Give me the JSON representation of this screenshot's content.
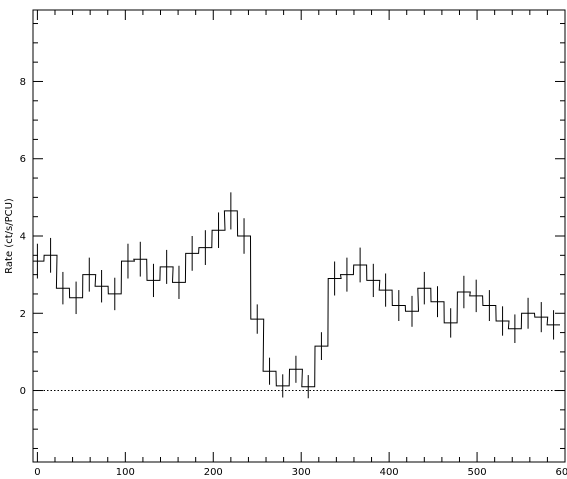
{
  "chart_data": {
    "type": "line",
    "step": true,
    "title": "",
    "xlabel": "",
    "ylabel": "Rate (ct/s/PCU)",
    "xlim": [
      -5,
      600
    ],
    "ylim": [
      -1.85,
      9.85
    ],
    "x_ticks": [
      0,
      100,
      200,
      300,
      400,
      500,
      600
    ],
    "y_ticks": [
      0,
      2,
      4,
      6,
      8
    ],
    "zero_line": true,
    "bin_width": 14.7,
    "series": [
      {
        "x": [
          0,
          15,
          29,
          44,
          59,
          73,
          88,
          103,
          117,
          132,
          147,
          161,
          176,
          191,
          206,
          220,
          235,
          250,
          264,
          279,
          294,
          308,
          323,
          338,
          352,
          367,
          382,
          396,
          411,
          426,
          440,
          455,
          470,
          485,
          499,
          514,
          529,
          543,
          558,
          573,
          587
        ],
        "y": [
          3.35,
          3.5,
          2.65,
          2.4,
          3.0,
          2.7,
          2.5,
          3.35,
          3.4,
          2.85,
          3.2,
          2.8,
          3.55,
          3.7,
          4.15,
          4.65,
          4.0,
          1.85,
          0.5,
          0.12,
          0.55,
          0.1,
          1.15,
          2.9,
          3.0,
          3.25,
          2.85,
          2.6,
          2.2,
          2.05,
          2.65,
          2.3,
          1.75,
          2.55,
          2.45,
          2.2,
          1.8,
          1.6,
          2.0,
          1.9,
          1.7
        ],
        "err": [
          0.45,
          0.45,
          0.42,
          0.42,
          0.44,
          0.42,
          0.42,
          0.45,
          0.45,
          0.43,
          0.44,
          0.43,
          0.45,
          0.45,
          0.46,
          0.48,
          0.46,
          0.38,
          0.35,
          0.3,
          0.35,
          0.3,
          0.36,
          0.44,
          0.44,
          0.45,
          0.43,
          0.43,
          0.4,
          0.4,
          0.42,
          0.4,
          0.38,
          0.42,
          0.42,
          0.4,
          0.38,
          0.37,
          0.4,
          0.39,
          0.38
        ]
      }
    ]
  }
}
